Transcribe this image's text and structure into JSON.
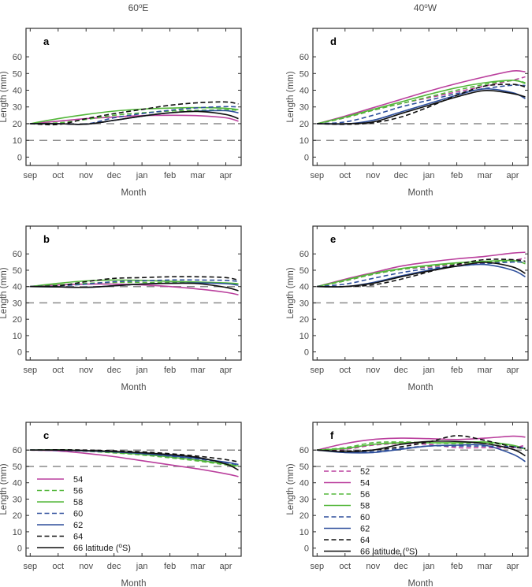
{
  "figure": {
    "column_titles": [
      "60°E",
      "40°W"
    ],
    "x_axis_label": "Month",
    "y_axis_label": "Length (mm)"
  },
  "colors": {
    "magenta": "#ba3f9d",
    "green": "#53b73a",
    "blue": "#2e4f9c",
    "black": "#101010",
    "ref_line": "#8a8a8a",
    "text": "#4a4a4a",
    "frame": "#2e2e2e",
    "legend_text": "#1a1a1a",
    "panel_letter": "#000000"
  },
  "chart_data": [
    {
      "type": "line",
      "id": "a",
      "letter": "a",
      "column_title": "60°E",
      "xlabel": "Month",
      "ylabel": "Length (mm)",
      "x_tick_labels": [
        "sep",
        "oct",
        "nov",
        "dec",
        "jan",
        "feb",
        "mar",
        "apr"
      ],
      "y_tick_values": [
        0,
        10,
        20,
        30,
        40,
        50,
        60
      ],
      "ylim": [
        -5,
        77
      ],
      "xlim": [
        -0.15,
        7.55
      ],
      "grid": false,
      "ref_lines": [
        10,
        20
      ],
      "x": [
        0,
        1,
        2,
        3,
        4,
        5,
        6,
        7,
        7.45
      ],
      "series": [
        {
          "name": "54",
          "color": "magenta",
          "dash": false,
          "values": [
            20,
            21.5,
            23,
            24,
            24.8,
            25,
            24.8,
            23.5,
            21.5
          ]
        },
        {
          "name": "56",
          "color": "green",
          "dash": true,
          "values": [
            20,
            20.5,
            22.5,
            25,
            26.5,
            27.5,
            28,
            28.3,
            28
          ]
        },
        {
          "name": "58",
          "color": "green",
          "dash": false,
          "values": [
            20,
            23,
            25.5,
            27.5,
            28.7,
            29.3,
            29.6,
            29.2,
            28.4
          ]
        },
        {
          "name": "60",
          "color": "blue",
          "dash": true,
          "values": [
            20,
            20,
            19.8,
            23.5,
            26,
            28,
            29.5,
            30.2,
            30
          ]
        },
        {
          "name": "62",
          "color": "blue",
          "dash": false,
          "values": [
            20,
            20,
            19.7,
            22,
            24.5,
            26.5,
            27.5,
            27.8,
            26.5
          ]
        },
        {
          "name": "64",
          "color": "black",
          "dash": true,
          "values": [
            20,
            19.5,
            23,
            26,
            28.5,
            31,
            32.5,
            33,
            31.8
          ]
        },
        {
          "name": "66",
          "color": "black",
          "dash": false,
          "values": [
            20,
            20,
            19.7,
            22,
            24.5,
            26.5,
            27.3,
            25.5,
            23
          ]
        }
      ],
      "legend": null
    },
    {
      "type": "line",
      "id": "b",
      "letter": "b",
      "column_title": "60°E",
      "xlabel": "Month",
      "ylabel": "Length (mm)",
      "x_tick_labels": [
        "sep",
        "oct",
        "nov",
        "dec",
        "jan",
        "feb",
        "mar",
        "apr"
      ],
      "y_tick_values": [
        0,
        10,
        20,
        30,
        40,
        50,
        60
      ],
      "ylim": [
        -5,
        77
      ],
      "xlim": [
        -0.15,
        7.55
      ],
      "grid": false,
      "ref_lines": [
        30,
        40
      ],
      "x": [
        0,
        1,
        2,
        3,
        4,
        5,
        6,
        7,
        7.45
      ],
      "series": [
        {
          "name": "54",
          "color": "magenta",
          "dash": false,
          "values": [
            40,
            41,
            41.5,
            41.5,
            41,
            40,
            38.5,
            36.5,
            35
          ]
        },
        {
          "name": "56",
          "color": "green",
          "dash": true,
          "values": [
            40,
            41,
            42,
            42.5,
            42.5,
            42.5,
            42.5,
            42,
            41.5
          ]
        },
        {
          "name": "58",
          "color": "green",
          "dash": false,
          "values": [
            40,
            42,
            43.5,
            44,
            43.8,
            43.2,
            42.8,
            42.2,
            41.8
          ]
        },
        {
          "name": "60",
          "color": "blue",
          "dash": true,
          "values": [
            40,
            40.5,
            41.5,
            43,
            43.5,
            44,
            44,
            43.8,
            43.2
          ]
        },
        {
          "name": "62",
          "color": "blue",
          "dash": false,
          "values": [
            40,
            39.8,
            39.5,
            40.5,
            41.5,
            42,
            42.2,
            41.8,
            40.8
          ]
        },
        {
          "name": "64",
          "color": "black",
          "dash": true,
          "values": [
            40,
            40.5,
            43,
            45,
            45.5,
            46,
            46,
            45.5,
            44
          ]
        },
        {
          "name": "66",
          "color": "black",
          "dash": false,
          "values": [
            40,
            39.8,
            39.5,
            40.5,
            41.5,
            42,
            41.8,
            39.5,
            37.5
          ]
        }
      ],
      "legend": null
    },
    {
      "type": "line",
      "id": "c",
      "letter": "c",
      "column_title": "60°E",
      "xlabel": "Month",
      "ylabel": "Length (mm)",
      "x_tick_labels": [
        "sep",
        "oct",
        "nov",
        "dec",
        "jan",
        "feb",
        "mar",
        "apr"
      ],
      "y_tick_values": [
        0,
        10,
        20,
        30,
        40,
        50,
        60
      ],
      "ylim": [
        -5,
        77
      ],
      "xlim": [
        -0.15,
        7.55
      ],
      "grid": false,
      "ref_lines": [
        50,
        60
      ],
      "x": [
        0,
        1,
        2,
        3,
        4,
        5,
        6,
        7,
        7.45
      ],
      "series": [
        {
          "name": "54",
          "color": "magenta",
          "dash": false,
          "values": [
            60,
            59.5,
            58,
            56,
            53.5,
            51,
            48.5,
            45.5,
            43.8
          ]
        },
        {
          "name": "56",
          "color": "green",
          "dash": true,
          "values": [
            60,
            60,
            59.3,
            58.3,
            57,
            55.3,
            53.3,
            51,
            50
          ]
        },
        {
          "name": "58",
          "color": "green",
          "dash": false,
          "values": [
            60,
            60.2,
            59.6,
            58.6,
            57.4,
            55.8,
            53.8,
            51.5,
            50.3
          ]
        },
        {
          "name": "60",
          "color": "blue",
          "dash": true,
          "values": [
            60,
            59.8,
            59.4,
            58.8,
            57.8,
            56.3,
            54.6,
            52.3,
            51
          ]
        },
        {
          "name": "62",
          "color": "blue",
          "dash": false,
          "values": [
            60,
            60,
            59.5,
            59,
            58,
            56.6,
            54.9,
            52.6,
            51.2
          ]
        },
        {
          "name": "64",
          "color": "black",
          "dash": true,
          "values": [
            60,
            60.2,
            60,
            59.6,
            58.9,
            57.8,
            56.3,
            54.2,
            52.8
          ]
        },
        {
          "name": "66",
          "color": "black",
          "dash": false,
          "values": [
            60,
            60,
            59.7,
            59.2,
            58.4,
            57.2,
            55.5,
            51.5,
            47.8
          ]
        }
      ],
      "legend": {
        "entries": [
          "54",
          "56",
          "58",
          "60",
          "62",
          "64",
          "66  latitude (°S)"
        ]
      }
    },
    {
      "type": "line",
      "id": "d",
      "letter": "d",
      "column_title": "40°W",
      "xlabel": "Month",
      "ylabel": "Length (mm)",
      "x_tick_labels": [
        "sep",
        "oct",
        "nov",
        "dec",
        "jan",
        "feb",
        "mar",
        "apr"
      ],
      "y_tick_values": [
        0,
        10,
        20,
        30,
        40,
        50,
        60
      ],
      "ylim": [
        -5,
        77
      ],
      "xlim": [
        -0.15,
        7.55
      ],
      "grid": false,
      "ref_lines": [
        10,
        20
      ],
      "x": [
        0,
        1,
        2,
        3,
        4,
        5,
        6,
        7,
        7.45
      ],
      "series": [
        {
          "name": "52",
          "color": "magenta",
          "dash": true,
          "values": [
            20,
            23.5,
            28,
            32,
            35.5,
            39,
            42.5,
            46,
            48
          ]
        },
        {
          "name": "54",
          "color": "magenta",
          "dash": false,
          "values": [
            20,
            24.5,
            29.5,
            34.5,
            39.5,
            44,
            48,
            51.5,
            51
          ]
        },
        {
          "name": "56",
          "color": "green",
          "dash": true,
          "values": [
            20,
            23.5,
            28,
            32,
            36,
            40,
            43.5,
            45.8,
            44.5
          ]
        },
        {
          "name": "58",
          "color": "green",
          "dash": false,
          "values": [
            20,
            24,
            28.5,
            33,
            37.5,
            41.5,
            44.5,
            46,
            44
          ]
        },
        {
          "name": "60",
          "color": "blue",
          "dash": true,
          "values": [
            20,
            21,
            25,
            30,
            34,
            38,
            41,
            43,
            42.8
          ]
        },
        {
          "name": "62",
          "color": "blue",
          "dash": false,
          "values": [
            20,
            19.8,
            22,
            27,
            32,
            37,
            40.8,
            38.5,
            35
          ]
        },
        {
          "name": "64",
          "color": "black",
          "dash": true,
          "values": [
            20,
            19.6,
            20.5,
            24,
            30,
            37,
            42.5,
            43.5,
            42
          ]
        },
        {
          "name": "66",
          "color": "black",
          "dash": false,
          "values": [
            20,
            20,
            21,
            26,
            31,
            36,
            39.8,
            38,
            36
          ]
        }
      ],
      "legend": null
    },
    {
      "type": "line",
      "id": "e",
      "letter": "e",
      "column_title": "40°W",
      "xlabel": "Month",
      "ylabel": "Length (mm)",
      "x_tick_labels": [
        "sep",
        "oct",
        "nov",
        "dec",
        "jan",
        "feb",
        "mar",
        "apr"
      ],
      "y_tick_values": [
        0,
        10,
        20,
        30,
        40,
        50,
        60
      ],
      "ylim": [
        -5,
        77
      ],
      "xlim": [
        -0.15,
        7.55
      ],
      "grid": false,
      "ref_lines": [
        30,
        40
      ],
      "x": [
        0,
        1,
        2,
        3,
        4,
        5,
        6,
        7,
        7.45
      ],
      "series": [
        {
          "name": "52",
          "color": "magenta",
          "dash": true,
          "values": [
            40,
            43.5,
            47.5,
            50.5,
            52,
            53.5,
            54.5,
            56,
            57.5
          ]
        },
        {
          "name": "54",
          "color": "magenta",
          "dash": false,
          "values": [
            40,
            44.5,
            48.5,
            52.5,
            55,
            57,
            58.5,
            60.5,
            61
          ]
        },
        {
          "name": "56",
          "color": "green",
          "dash": true,
          "values": [
            40,
            43.5,
            47.5,
            50.5,
            52.5,
            54,
            55,
            55.5,
            54.5
          ]
        },
        {
          "name": "58",
          "color": "green",
          "dash": false,
          "values": [
            40,
            44,
            48,
            51,
            53,
            54.5,
            55.5,
            56,
            54
          ]
        },
        {
          "name": "60",
          "color": "blue",
          "dash": true,
          "values": [
            40,
            41.5,
            45,
            48.5,
            51,
            52.5,
            54,
            55,
            55
          ]
        },
        {
          "name": "62",
          "color": "blue",
          "dash": false,
          "values": [
            40,
            40,
            42.5,
            46.5,
            50,
            52.5,
            53.5,
            50,
            46
          ]
        },
        {
          "name": "64",
          "color": "black",
          "dash": true,
          "values": [
            40,
            40,
            41,
            44.5,
            49,
            53.5,
            56.5,
            56.5,
            55.5
          ]
        },
        {
          "name": "66",
          "color": "black",
          "dash": false,
          "values": [
            40,
            40,
            42,
            46,
            49.5,
            52.5,
            54.8,
            52,
            48
          ]
        }
      ],
      "legend": null
    },
    {
      "type": "line",
      "id": "f",
      "letter": "f",
      "column_title": "40°W",
      "xlabel": "Month",
      "ylabel": "Length (mm)",
      "x_tick_labels": [
        "sep",
        "oct",
        "nov",
        "dec",
        "jan",
        "feb",
        "mar",
        "apr"
      ],
      "y_tick_values": [
        0,
        10,
        20,
        30,
        40,
        50,
        60
      ],
      "ylim": [
        -5,
        77
      ],
      "xlim": [
        -0.15,
        7.55
      ],
      "grid": false,
      "ref_lines": [
        50,
        60
      ],
      "x": [
        0,
        1,
        2,
        3,
        4,
        5,
        6,
        7,
        7.45
      ],
      "series": [
        {
          "name": "52",
          "color": "magenta",
          "dash": true,
          "values": [
            60,
            60.5,
            63,
            64,
            63.5,
            61.5,
            61.5,
            61.5,
            63
          ]
        },
        {
          "name": "54",
          "color": "magenta",
          "dash": false,
          "values": [
            60,
            64,
            66.5,
            67.3,
            67,
            66.5,
            67.3,
            68.5,
            68
          ]
        },
        {
          "name": "56",
          "color": "green",
          "dash": true,
          "values": [
            60,
            61.5,
            64.5,
            65,
            64.5,
            64,
            64.5,
            62.5,
            60.5
          ]
        },
        {
          "name": "58",
          "color": "green",
          "dash": false,
          "values": [
            60,
            61,
            63.5,
            64.5,
            64.5,
            64.5,
            65,
            63,
            60.5
          ]
        },
        {
          "name": "60",
          "color": "blue",
          "dash": true,
          "values": [
            60,
            59,
            59,
            61,
            62.5,
            62.5,
            62.5,
            62,
            61.3
          ]
        },
        {
          "name": "62",
          "color": "blue",
          "dash": false,
          "values": [
            60,
            58.5,
            58.5,
            60.5,
            62.5,
            63,
            63,
            57.5,
            53
          ]
        },
        {
          "name": "64",
          "color": "black",
          "dash": true,
          "values": [
            60,
            59.5,
            60,
            62,
            65,
            68.8,
            66,
            62,
            61
          ]
        },
        {
          "name": "66",
          "color": "black",
          "dash": false,
          "values": [
            60,
            59,
            60,
            63.5,
            65.3,
            65.3,
            64,
            60.5,
            56.5
          ]
        }
      ],
      "legend": {
        "entries": [
          "52",
          "54",
          "56",
          "58",
          "60",
          "62",
          "64",
          "66  latitude (°S)"
        ]
      }
    }
  ]
}
